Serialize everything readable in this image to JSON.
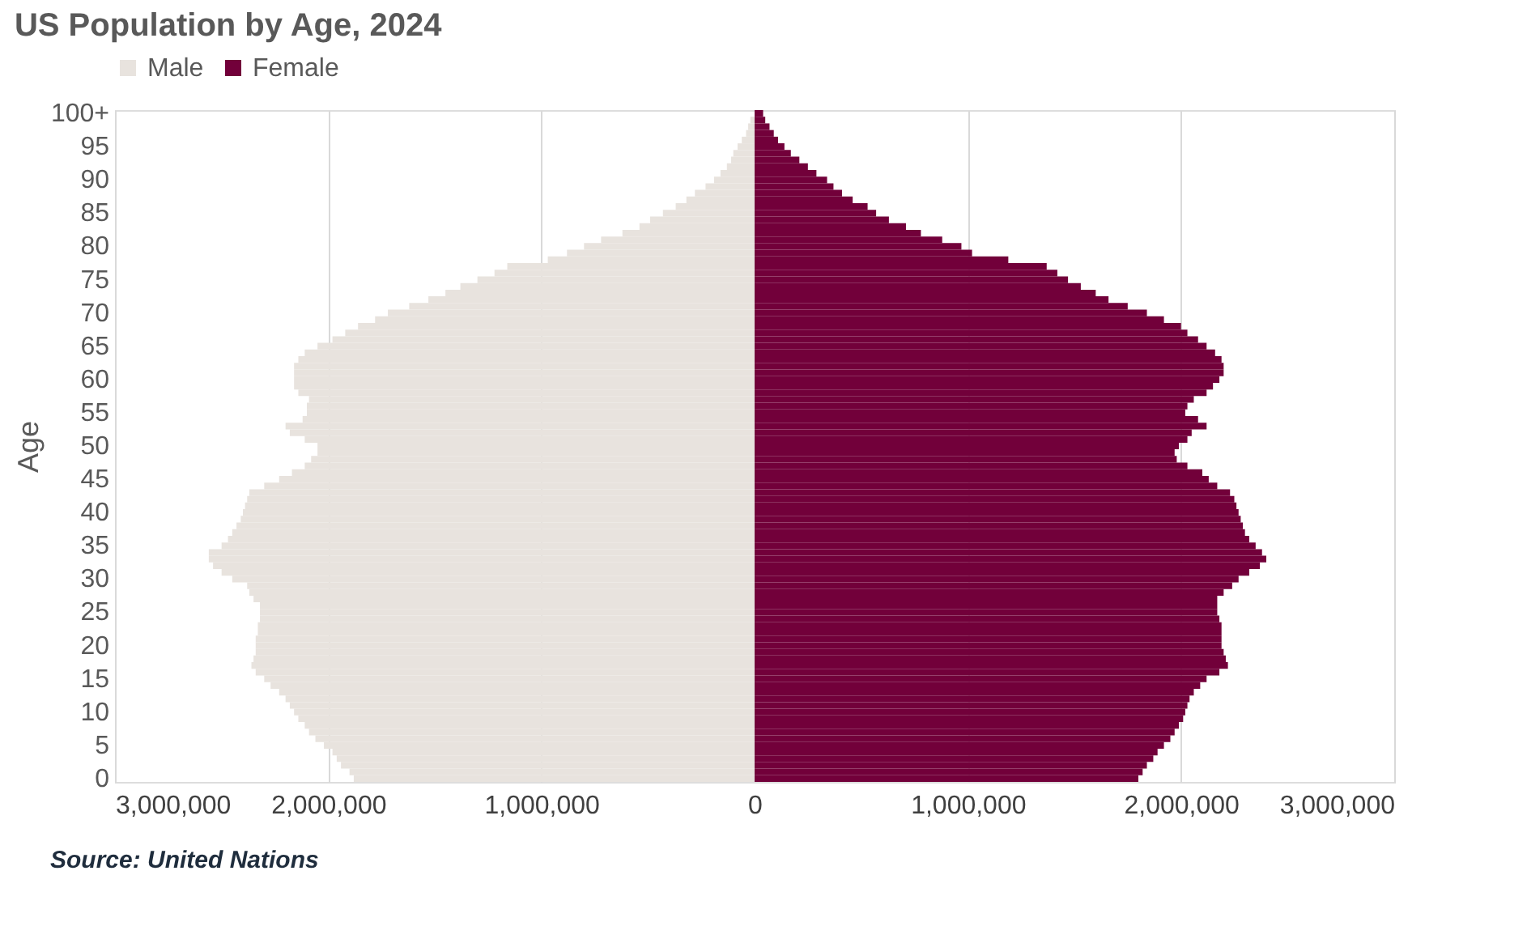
{
  "chart_data": {
    "type": "bar",
    "orientation": "horizontal",
    "stacked": true,
    "title": "US Population by Age, 2024",
    "ylabel": "Age",
    "categories": [
      "100+",
      null,
      null,
      null,
      null,
      "95",
      null,
      null,
      null,
      null,
      "90",
      null,
      null,
      null,
      null,
      "85",
      null,
      null,
      null,
      null,
      "80",
      null,
      null,
      null,
      null,
      "75",
      null,
      null,
      null,
      null,
      "70",
      null,
      null,
      null,
      null,
      "65",
      null,
      null,
      null,
      null,
      "60",
      null,
      null,
      null,
      null,
      "55",
      null,
      null,
      null,
      null,
      "50",
      null,
      null,
      null,
      null,
      "45",
      null,
      null,
      null,
      null,
      "40",
      null,
      null,
      null,
      null,
      "35",
      null,
      null,
      null,
      null,
      "30",
      null,
      null,
      null,
      null,
      "25",
      null,
      null,
      null,
      null,
      "20",
      null,
      null,
      null,
      null,
      "15",
      null,
      null,
      null,
      null,
      "10",
      null,
      null,
      null,
      null,
      "5",
      null,
      null,
      null,
      null,
      "0"
    ],
    "series": [
      {
        "name": "Male",
        "color": "#e8e3de",
        "values": [
          null,
          -20000,
          -30000,
          -40000,
          -60000,
          -80000,
          -100000,
          -110000,
          -130000,
          -160000,
          -190000,
          -230000,
          -280000,
          -320000,
          -370000,
          -430000,
          -490000,
          -540000,
          -620000,
          -720000,
          -800000,
          -880000,
          -970000,
          -1160000,
          -1220000,
          -1300000,
          -1380000,
          -1450000,
          -1530000,
          -1620000,
          -1720000,
          -1780000,
          -1860000,
          -1920000,
          -1980000,
          -2050000,
          -2110000,
          -2140000,
          -2160000,
          -2160000,
          -2160000,
          -2160000,
          -2140000,
          -2090000,
          -2100000,
          -2100000,
          -2120000,
          -2200000,
          -2180000,
          -2110000,
          -2050000,
          -2050000,
          -2080000,
          -2110000,
          -2170000,
          -2230000,
          -2300000,
          -2370000,
          -2380000,
          -2390000,
          -2400000,
          -2410000,
          -2430000,
          -2450000,
          -2470000,
          -2500000,
          -2560000,
          -2560000,
          -2540000,
          -2500000,
          -2450000,
          -2380000,
          -2370000,
          -2350000,
          -2320000,
          -2320000,
          -2320000,
          -2330000,
          -2330000,
          -2340000,
          -2340000,
          -2340000,
          -2350000,
          -2360000,
          -2340000,
          -2300000,
          -2270000,
          -2230000,
          -2200000,
          -2180000,
          -2160000,
          -2140000,
          -2110000,
          -2090000,
          -2060000,
          -2020000,
          -1980000,
          -1960000,
          -1940000,
          -1900000,
          -1880000
        ]
      },
      {
        "name": "Female",
        "color": "#72003a",
        "values": [
          40000,
          50000,
          70000,
          90000,
          110000,
          140000,
          170000,
          210000,
          250000,
          290000,
          340000,
          370000,
          410000,
          460000,
          530000,
          570000,
          630000,
          710000,
          780000,
          880000,
          970000,
          1020000,
          1190000,
          1370000,
          1420000,
          1470000,
          1530000,
          1600000,
          1660000,
          1750000,
          1840000,
          1920000,
          2000000,
          2030000,
          2080000,
          2120000,
          2160000,
          2190000,
          2200000,
          2200000,
          2180000,
          2150000,
          2120000,
          2060000,
          2030000,
          2020000,
          2080000,
          2120000,
          2050000,
          2030000,
          1990000,
          1970000,
          1980000,
          2030000,
          2100000,
          2130000,
          2170000,
          2230000,
          2250000,
          2260000,
          2270000,
          2280000,
          2290000,
          2300000,
          2320000,
          2350000,
          2380000,
          2400000,
          2370000,
          2320000,
          2270000,
          2240000,
          2200000,
          2170000,
          2170000,
          2170000,
          2180000,
          2190000,
          2190000,
          2190000,
          2190000,
          2200000,
          2210000,
          2220000,
          2180000,
          2120000,
          2090000,
          2060000,
          2040000,
          2030000,
          2020000,
          2010000,
          1990000,
          1970000,
          1950000,
          1920000,
          1890000,
          1870000,
          1840000,
          1820000,
          1800000
        ]
      }
    ],
    "xlim": [
      -3000000,
      3000000
    ],
    "xticks": [
      {
        "value": -3000000,
        "label": "3,000,000"
      },
      {
        "value": -2000000,
        "label": "2,000,000"
      },
      {
        "value": -1000000,
        "label": "1,000,000"
      },
      0,
      {
        "value": 1000000,
        "label": "1,000,000"
      },
      {
        "value": 2000000,
        "label": "2,000,000"
      },
      {
        "value": 3000000,
        "label": "3,000,000"
      }
    ],
    "grid": "x",
    "legend": "top",
    "annotations": [
      "Source: United Nations"
    ]
  }
}
